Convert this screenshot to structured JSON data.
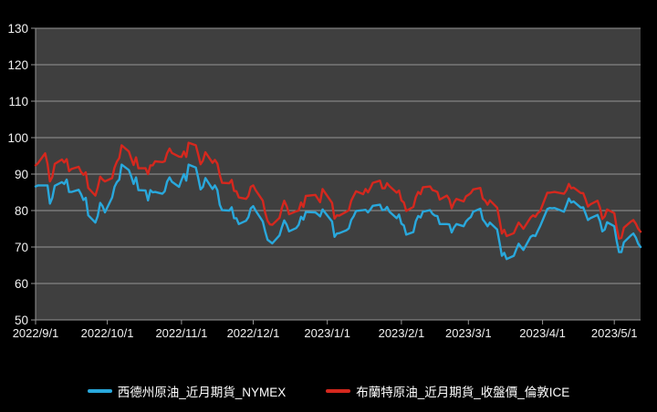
{
  "page": {
    "background": "#000000"
  },
  "chart_data": {
    "type": "line",
    "title": "",
    "xlabel": "",
    "ylabel": "",
    "ylim": [
      50,
      130
    ],
    "y_ticks": [
      130,
      120,
      110,
      100,
      90,
      80,
      70,
      60,
      50
    ],
    "grid": "horizontal",
    "legend_position": "bottom",
    "plot_bg": "#3f3f3f",
    "grid_color": "#949494",
    "axis_text_color": "#f2f2f2",
    "x_ticks": [
      {
        "date": "2022-09-01",
        "label": "2022/9/1"
      },
      {
        "date": "2022-10-01",
        "label": "2022/10/1"
      },
      {
        "date": "2022-11-01",
        "label": "2022/11/1"
      },
      {
        "date": "2022-12-01",
        "label": "2022/12/1"
      },
      {
        "date": "2023-01-01",
        "label": "2023/1/1"
      },
      {
        "date": "2023-02-01",
        "label": "2023/2/1"
      },
      {
        "date": "2023-03-01",
        "label": "2023/3/1"
      },
      {
        "date": "2023-04-01",
        "label": "2023/4/1"
      },
      {
        "date": "2023-05-01",
        "label": "2023/5/1"
      }
    ],
    "dates": [
      "2022-09-01",
      "2022-09-02",
      "2022-09-05",
      "2022-09-06",
      "2022-09-07",
      "2022-09-08",
      "2022-09-09",
      "2022-09-12",
      "2022-09-13",
      "2022-09-14",
      "2022-09-15",
      "2022-09-16",
      "2022-09-19",
      "2022-09-20",
      "2022-09-21",
      "2022-09-22",
      "2022-09-23",
      "2022-09-26",
      "2022-09-27",
      "2022-09-28",
      "2022-09-29",
      "2022-09-30",
      "2022-10-03",
      "2022-10-04",
      "2022-10-05",
      "2022-10-06",
      "2022-10-07",
      "2022-10-10",
      "2022-10-11",
      "2022-10-12",
      "2022-10-13",
      "2022-10-14",
      "2022-10-17",
      "2022-10-18",
      "2022-10-19",
      "2022-10-20",
      "2022-10-21",
      "2022-10-24",
      "2022-10-25",
      "2022-10-26",
      "2022-10-27",
      "2022-10-28",
      "2022-10-31",
      "2022-11-01",
      "2022-11-02",
      "2022-11-03",
      "2022-11-04",
      "2022-11-07",
      "2022-11-08",
      "2022-11-09",
      "2022-11-10",
      "2022-11-11",
      "2022-11-14",
      "2022-11-15",
      "2022-11-16",
      "2022-11-17",
      "2022-11-18",
      "2022-11-21",
      "2022-11-22",
      "2022-11-23",
      "2022-11-24",
      "2022-11-25",
      "2022-11-28",
      "2022-11-29",
      "2022-11-30",
      "2022-12-01",
      "2022-12-02",
      "2022-12-05",
      "2022-12-06",
      "2022-12-07",
      "2022-12-08",
      "2022-12-09",
      "2022-12-12",
      "2022-12-13",
      "2022-12-14",
      "2022-12-15",
      "2022-12-16",
      "2022-12-19",
      "2022-12-20",
      "2022-12-21",
      "2022-12-22",
      "2022-12-23",
      "2022-12-27",
      "2022-12-28",
      "2022-12-29",
      "2022-12-30",
      "2023-01-03",
      "2023-01-04",
      "2023-01-05",
      "2023-01-06",
      "2023-01-09",
      "2023-01-10",
      "2023-01-11",
      "2023-01-12",
      "2023-01-13",
      "2023-01-16",
      "2023-01-17",
      "2023-01-18",
      "2023-01-19",
      "2023-01-20",
      "2023-01-23",
      "2023-01-24",
      "2023-01-25",
      "2023-01-26",
      "2023-01-27",
      "2023-01-30",
      "2023-01-31",
      "2023-02-01",
      "2023-02-02",
      "2023-02-03",
      "2023-02-06",
      "2023-02-07",
      "2023-02-08",
      "2023-02-09",
      "2023-02-10",
      "2023-02-13",
      "2023-02-14",
      "2023-02-15",
      "2023-02-16",
      "2023-02-17",
      "2023-02-20",
      "2023-02-21",
      "2023-02-22",
      "2023-02-23",
      "2023-02-24",
      "2023-02-27",
      "2023-02-28",
      "2023-03-01",
      "2023-03-02",
      "2023-03-03",
      "2023-03-06",
      "2023-03-07",
      "2023-03-08",
      "2023-03-09",
      "2023-03-10",
      "2023-03-13",
      "2023-03-14",
      "2023-03-15",
      "2023-03-16",
      "2023-03-17",
      "2023-03-20",
      "2023-03-21",
      "2023-03-22",
      "2023-03-23",
      "2023-03-24",
      "2023-03-27",
      "2023-03-28",
      "2023-03-29",
      "2023-03-30",
      "2023-03-31",
      "2023-04-03",
      "2023-04-04",
      "2023-04-05",
      "2023-04-06",
      "2023-04-10",
      "2023-04-11",
      "2023-04-12",
      "2023-04-13",
      "2023-04-14",
      "2023-04-17",
      "2023-04-18",
      "2023-04-19",
      "2023-04-20",
      "2023-04-21",
      "2023-04-24",
      "2023-04-25",
      "2023-04-26",
      "2023-04-27",
      "2023-04-28",
      "2023-05-01",
      "2023-05-02",
      "2023-05-03",
      "2023-05-04",
      "2023-05-05",
      "2023-05-08",
      "2023-05-09",
      "2023-05-10",
      "2023-05-11",
      "2023-05-12"
    ],
    "series": [
      {
        "name": "西德州原油_近月期貨_NYMEX",
        "color": "#29a8dc",
        "values": [
          86.6,
          86.9,
          86.9,
          86.9,
          81.9,
          83.5,
          86.8,
          87.8,
          87.3,
          88.5,
          85.1,
          85.1,
          85.7,
          84.5,
          82.9,
          83.5,
          78.7,
          76.7,
          78.5,
          82.1,
          81.2,
          79.5,
          83.6,
          86.5,
          87.8,
          88.5,
          92.6,
          91.1,
          89.4,
          87.3,
          89.1,
          85.6,
          85.5,
          82.8,
          85.6,
          85.0,
          85.1,
          84.6,
          85.3,
          87.9,
          89.1,
          87.9,
          86.5,
          88.4,
          90.0,
          88.2,
          92.6,
          91.8,
          89.0,
          85.8,
          86.5,
          88.9,
          85.9,
          86.9,
          85.6,
          81.6,
          80.1,
          80.0,
          80.9,
          77.9,
          77.9,
          76.3,
          77.2,
          78.2,
          80.6,
          81.2,
          80.0,
          77.0,
          74.3,
          72.0,
          71.5,
          71.0,
          73.2,
          75.4,
          77.3,
          76.1,
          74.3,
          75.2,
          76.1,
          78.3,
          77.5,
          79.6,
          79.5,
          79.0,
          78.4,
          80.3,
          77.0,
          72.8,
          73.7,
          73.8,
          74.6,
          75.1,
          77.4,
          78.4,
          79.9,
          80.1,
          80.2,
          79.5,
          80.3,
          81.3,
          81.6,
          80.1,
          80.2,
          81.0,
          79.7,
          77.9,
          78.9,
          76.4,
          75.9,
          73.4,
          74.1,
          77.1,
          78.5,
          78.1,
          79.7,
          80.1,
          79.1,
          78.6,
          78.5,
          76.3,
          76.3,
          76.2,
          74.0,
          75.4,
          76.3,
          75.7,
          77.0,
          77.7,
          78.2,
          79.7,
          80.5,
          77.6,
          76.7,
          75.7,
          76.7,
          74.8,
          71.3,
          67.6,
          68.4,
          66.7,
          67.6,
          69.3,
          70.9,
          70.0,
          69.2,
          72.8,
          73.2,
          73.0,
          74.4,
          75.7,
          80.4,
          80.7,
          80.6,
          80.7,
          79.7,
          81.5,
          83.3,
          82.2,
          82.5,
          80.8,
          80.9,
          79.2,
          77.4,
          77.9,
          78.8,
          77.1,
          74.3,
          74.8,
          76.8,
          75.7,
          71.7,
          68.6,
          68.6,
          71.3,
          73.2,
          73.7,
          72.6,
          70.9,
          70.0
        ]
      },
      {
        "name": "布蘭特原油_近月期貨_收盤價_倫敦ICE",
        "color": "#d5281e",
        "values": [
          92.4,
          93.0,
          95.7,
          92.8,
          88.0,
          89.2,
          92.8,
          94.0,
          93.2,
          94.1,
          90.8,
          91.4,
          92.0,
          90.6,
          89.8,
          90.5,
          86.2,
          84.1,
          86.3,
          89.3,
          88.5,
          88.0,
          88.9,
          91.8,
          93.4,
          94.4,
          97.9,
          96.2,
          94.3,
          92.5,
          94.6,
          91.6,
          91.6,
          90.0,
          92.4,
          92.4,
          93.5,
          93.3,
          93.5,
          95.7,
          97.0,
          95.8,
          94.8,
          94.7,
          96.2,
          94.7,
          98.6,
          97.9,
          95.4,
          92.7,
          93.7,
          96.0,
          93.1,
          93.9,
          92.9,
          89.8,
          87.6,
          87.5,
          88.4,
          85.4,
          85.3,
          83.6,
          83.2,
          84.0,
          86.5,
          86.9,
          85.6,
          82.7,
          79.4,
          77.2,
          76.2,
          76.1,
          78.0,
          80.7,
          82.7,
          81.2,
          79.0,
          79.8,
          80.0,
          82.2,
          81.0,
          84.0,
          84.3,
          83.3,
          82.3,
          85.9,
          82.1,
          77.8,
          78.7,
          78.6,
          79.7,
          80.1,
          82.7,
          84.0,
          85.3,
          84.5,
          85.9,
          85.0,
          86.2,
          87.6,
          88.2,
          86.1,
          86.1,
          87.5,
          86.7,
          84.9,
          85.5,
          82.8,
          82.2,
          79.9,
          81.0,
          83.7,
          85.1,
          84.5,
          86.4,
          86.6,
          85.6,
          85.4,
          85.1,
          83.0,
          84.1,
          83.1,
          80.6,
          82.2,
          83.2,
          82.5,
          83.9,
          84.3,
          84.8,
          85.8,
          86.2,
          83.3,
          82.7,
          81.6,
          82.8,
          80.8,
          77.5,
          73.7,
          74.7,
          73.0,
          73.8,
          75.3,
          76.7,
          75.9,
          75.0,
          78.1,
          78.7,
          78.3,
          79.3,
          79.8,
          84.9,
          84.9,
          85.0,
          85.1,
          84.6,
          85.6,
          87.3,
          86.1,
          86.3,
          84.8,
          84.8,
          83.1,
          81.1,
          81.7,
          82.7,
          80.8,
          77.7,
          78.4,
          80.3,
          79.3,
          75.3,
          72.3,
          72.5,
          75.3,
          77.0,
          77.4,
          76.4,
          75.0,
          74.2
        ]
      }
    ]
  }
}
